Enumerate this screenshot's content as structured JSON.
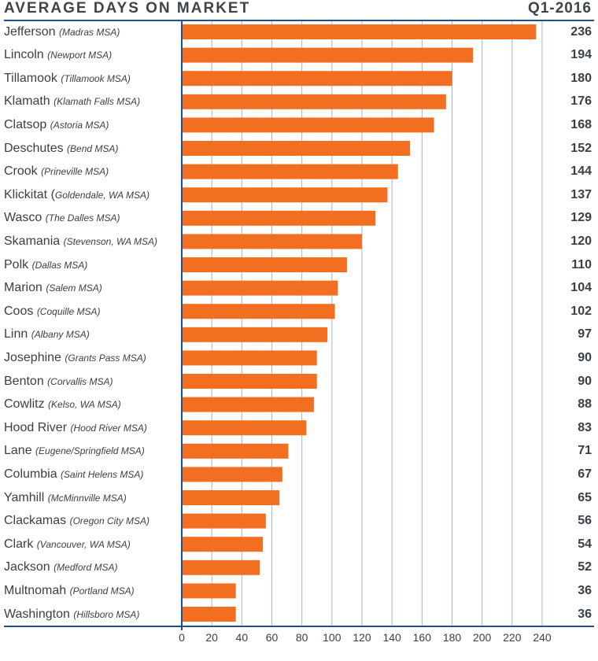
{
  "header": {
    "title": "AVERAGE DAYS ON MARKET",
    "period": "Q1-2016"
  },
  "colors": {
    "bar": "#f26f21",
    "grid": "#9fb6d6",
    "axis": "#1f4e91",
    "text": "#3a3f44"
  },
  "chart_data": {
    "type": "bar",
    "orientation": "horizontal",
    "title": "AVERAGE DAYS ON MARKET",
    "subtitle": "Q1-2016",
    "xlabel": "",
    "ylabel": "",
    "xlim": [
      0,
      240
    ],
    "grid": true,
    "xticks": [
      "0",
      "20",
      "40",
      "60",
      "80",
      "100",
      "120",
      "140",
      "160",
      "180",
      "200",
      "220",
      "240"
    ],
    "rows": [
      {
        "county": "Jefferson",
        "msa": "(Madras MSA)",
        "value": 236
      },
      {
        "county": "Lincoln",
        "msa": "(Newport MSA)",
        "value": 194
      },
      {
        "county": "Tillamook",
        "msa": "(Tillamook MSA)",
        "value": 180
      },
      {
        "county": "Klamath",
        "msa": "(Klamath Falls MSA)",
        "value": 176
      },
      {
        "county": "Clatsop",
        "msa": "(Astoria MSA)",
        "value": 168
      },
      {
        "county": "Deschutes",
        "msa": "(Bend MSA)",
        "value": 152
      },
      {
        "county": "Crook",
        "msa": "(Prineville MSA)",
        "value": 144
      },
      {
        "county": "Klickitat (",
        "msa": "Goldendale, WA MSA)",
        "value": 137
      },
      {
        "county": "Wasco",
        "msa": "(The Dalles MSA)",
        "value": 129
      },
      {
        "county": "Skamania",
        "msa": "(Stevenson, WA MSA)",
        "value": 120
      },
      {
        "county": "Polk",
        "msa": "(Dallas MSA)",
        "value": 110
      },
      {
        "county": "Marion",
        "msa": "(Salem MSA)",
        "value": 104
      },
      {
        "county": "Coos",
        "msa": "(Coquille MSA)",
        "value": 102
      },
      {
        "county": "Linn",
        "msa": "(Albany MSA)",
        "value": 97
      },
      {
        "county": "Josephine",
        "msa": "(Grants Pass MSA)",
        "value": 90
      },
      {
        "county": "Benton",
        "msa": "(Corvallis MSA)",
        "value": 90
      },
      {
        "county": "Cowlitz",
        "msa": "(Kelso, WA MSA)",
        "value": 88
      },
      {
        "county": "Hood River",
        "msa": "(Hood River MSA)",
        "value": 83
      },
      {
        "county": "Lane",
        "msa": "(Eugene/Springfield MSA)",
        "value": 71
      },
      {
        "county": "Columbia",
        "msa": "(Saint Helens MSA)",
        "value": 67
      },
      {
        "county": "Yamhill",
        "msa": "(McMinnville MSA)",
        "value": 65
      },
      {
        "county": "Clackamas",
        "msa": "(Oregon City MSA)",
        "value": 56
      },
      {
        "county": "Clark",
        "msa": "(Vancouver, WA MSA)",
        "value": 54
      },
      {
        "county": "Jackson",
        "msa": "(Medford MSA)",
        "value": 52
      },
      {
        "county": "Multnomah",
        "msa": "(Portland MSA)",
        "value": 36
      },
      {
        "county": "Washington",
        "msa": "(Hillsboro MSA)",
        "value": 36
      }
    ]
  }
}
